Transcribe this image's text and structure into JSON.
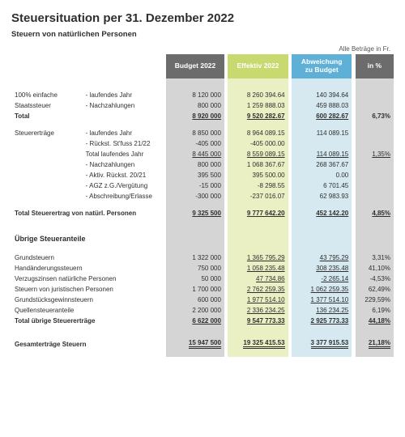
{
  "title": "Steuersituation per 31. Dezember 2022",
  "subtitle": "Steuern von natürlichen Personen",
  "note": "Alle Beträge in Fr.",
  "columns": {
    "budget": "Budget 2022",
    "effektiv": "Effektiv 2022",
    "abw_l1": "Abweichung",
    "abw_l2": "zu Budget",
    "pct": "in %"
  },
  "colors": {
    "hdr_dark": "#6c6c6c",
    "hdr_lime": "#c8d96f",
    "hdr_blue": "#5fb0d6",
    "bg_gray": "#d5d5d5",
    "bg_lime": "#eaf0c3",
    "bg_blue": "#d6e8f0",
    "text": "#2f2f2f"
  },
  "blockA": {
    "rows": [
      {
        "l1": "100% einfache",
        "l2": "- laufendes Jahr",
        "b": "8 120 000",
        "e": "8 260 394.64",
        "a": "140 394.64",
        "p": ""
      },
      {
        "l1": "Staatssteuer",
        "l2": "- Nachzahlungen",
        "b": "800 000",
        "e": "1 259 888.03",
        "a": "459 888.03",
        "p": ""
      }
    ],
    "total": {
      "l1": "Total",
      "b": "8 920 000",
      "e": "9 520 282.67",
      "a": "600 282.67",
      "p": "6,73%"
    }
  },
  "blockB": {
    "rows": [
      {
        "l1": "Steuererträge",
        "l2": "- laufendes Jahr",
        "b": "8 850 000",
        "e": "8 964 089.15",
        "a": "114 089.15",
        "p": ""
      },
      {
        "l1": "",
        "l2": "- Rückst. St'fuss 21/22",
        "b": "-405 000",
        "e": "-405 000.00",
        "a": "",
        "p": ""
      }
    ],
    "subtotal": {
      "l2": "Total laufendes Jahr",
      "b": "8 445 000",
      "e": "8 559 089.15",
      "a": "114 089.15",
      "p": "1,35%"
    },
    "rows2": [
      {
        "l2": "- Nachzahlungen",
        "b": "800 000",
        "e": "1 068 367.67",
        "a": "268 367.67",
        "p": ""
      },
      {
        "l2": "- Aktiv. Rückst. 20/21",
        "b": "395 500",
        "e": "395 500.00",
        "a": "0.00",
        "p": ""
      },
      {
        "l2": "- AGZ z.G./Vergütung",
        "b": "-15 000",
        "e": "-8 298.55",
        "a": "6 701.45",
        "p": ""
      },
      {
        "l2": "- Abschreibung/Erlasse",
        "b": "-300 000",
        "e": "-237 016.07",
        "a": "62 983.93",
        "p": ""
      }
    ],
    "total": {
      "l1": "Total Steuerertrag von natürl. Personen",
      "b": "9 325 500",
      "e": "9 777 642.20",
      "a": "452 142.20",
      "p": "4,85%"
    }
  },
  "blockC": {
    "heading": "Übrige Steueranteile",
    "rows": [
      {
        "l1": "Grundsteuern",
        "b": "1 322 000",
        "e": "1 365 795.29",
        "a": "43 795.29",
        "p": "3,31%"
      },
      {
        "l1": "Handänderungssteuern",
        "b": "750 000",
        "e": "1 058 235.48",
        "a": "308 235.48",
        "p": "41,10%"
      },
      {
        "l1": "Verzugszinsen natürliche Personen",
        "b": "50 000",
        "e": "47 734.86",
        "a": "-2 265.14",
        "p": "-4,53%"
      },
      {
        "l1": "Steuern von juristischen Personen",
        "b": "1 700 000",
        "e": "2 762 259.35",
        "a": "1 062 259.35",
        "p": "62,49%"
      },
      {
        "l1": "Grundstücksgewinnsteuern",
        "b": "600 000",
        "e": "1 977 514.10",
        "a": "1 377 514.10",
        "p": "229,59%"
      },
      {
        "l1": "Quellensteueranteile",
        "b": "2 200 000",
        "e": "2 336 234.25",
        "a": "136 234.25",
        "p": "6,19%"
      }
    ],
    "total": {
      "l1": "Total übrige Steuererträge",
      "b": "6 622 000",
      "e": "9 547 773.33",
      "a": "2 925 773.33",
      "p": "44,18%"
    }
  },
  "grand": {
    "l1": "Gesamterträge Steuern",
    "b": "15 947 500",
    "e": "19 325 415.53",
    "a": "3 377 915.53",
    "p": "21,18%"
  }
}
